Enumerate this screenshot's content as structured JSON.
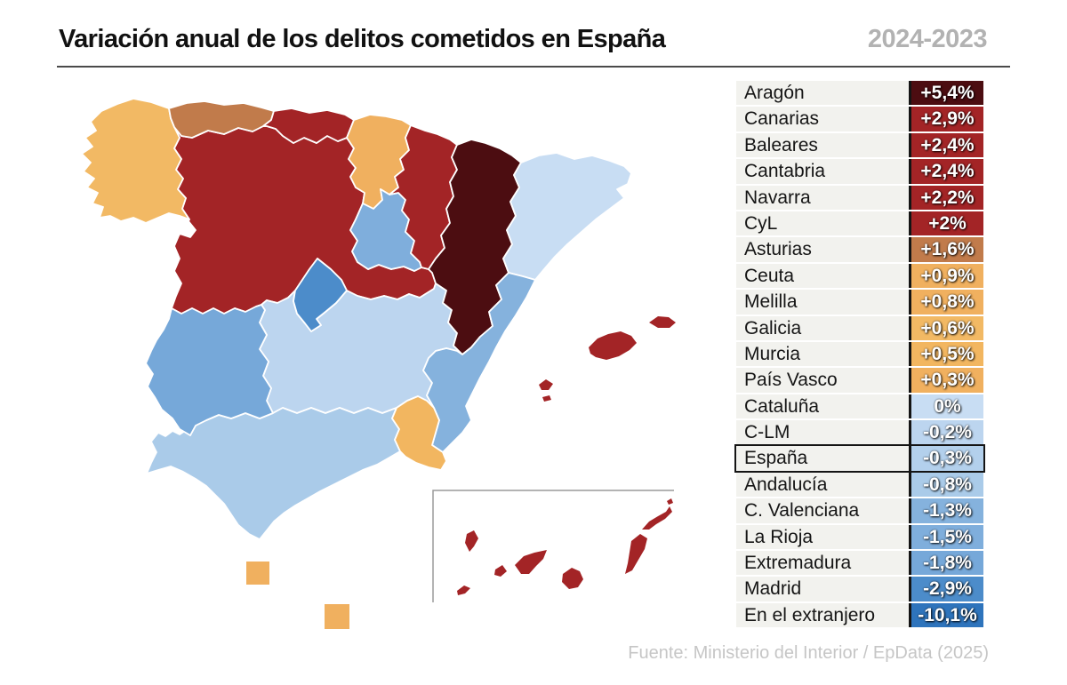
{
  "header": {
    "title": "Variación anual de los delitos cometidos en España",
    "period": "2024-2023"
  },
  "footer": {
    "source": "Fuente: Ministerio del Interior / EpData (2025)"
  },
  "palette": {
    "darkest_increase": "#4C0D11",
    "strong_increase": "#A32426",
    "moderate_increase": "#C17B4B",
    "slight_increase": "#F0B05F",
    "neutral": "#C8DDF3",
    "slight_decrease": "#B3D0EC",
    "moderate_decrease": "#85B2DD",
    "strong_decrease": "#4C8CCA",
    "darkest_decrease": "#2E74BC",
    "row_label_bg": "#f2f2ee",
    "inset_box_stroke": "#9a9a9a"
  },
  "chart_data": {
    "type": "table",
    "subtype": "choropleth-map-of-spain",
    "title": "Variación anual de los delitos cometidos en España",
    "period_label": "2024-2023",
    "unit": "%",
    "source": "Fuente: Ministerio del Interior / EpData (2025)",
    "legend_position": "right",
    "highlighted_row": "España",
    "regions": [
      {
        "id": "aragon",
        "label": "Aragón",
        "value": 5.4,
        "value_label": "+5,4%",
        "color": "#4C0D11",
        "boxed": false,
        "on_map": true
      },
      {
        "id": "canarias",
        "label": "Canarias",
        "value": 2.9,
        "value_label": "+2,9%",
        "color": "#A32426",
        "boxed": false,
        "on_map": true
      },
      {
        "id": "baleares",
        "label": "Baleares",
        "value": 2.4,
        "value_label": "+2,4%",
        "color": "#A32426",
        "boxed": false,
        "on_map": true
      },
      {
        "id": "cantabria",
        "label": "Cantabria",
        "value": 2.4,
        "value_label": "+2,4%",
        "color": "#A32426",
        "boxed": false,
        "on_map": true
      },
      {
        "id": "navarra",
        "label": "Navarra",
        "value": 2.2,
        "value_label": "+2,2%",
        "color": "#A32426",
        "boxed": false,
        "on_map": true
      },
      {
        "id": "cyl",
        "label": "CyL",
        "value": 2.0,
        "value_label": "+2%",
        "color": "#A32426",
        "boxed": false,
        "on_map": true
      },
      {
        "id": "asturias",
        "label": "Asturias",
        "value": 1.6,
        "value_label": "+1,6%",
        "color": "#C17B4B",
        "boxed": false,
        "on_map": true
      },
      {
        "id": "ceuta",
        "label": "Ceuta",
        "value": 0.9,
        "value_label": "+0,9%",
        "color": "#F0B05F",
        "boxed": false,
        "on_map": true
      },
      {
        "id": "melilla",
        "label": "Melilla",
        "value": 0.8,
        "value_label": "+0,8%",
        "color": "#F0B05F",
        "boxed": false,
        "on_map": true
      },
      {
        "id": "galicia",
        "label": "Galicia",
        "value": 0.6,
        "value_label": "+0,6%",
        "color": "#F2B964",
        "boxed": false,
        "on_map": true
      },
      {
        "id": "murcia",
        "label": "Murcia",
        "value": 0.5,
        "value_label": "+0,5%",
        "color": "#F2B660",
        "boxed": false,
        "on_map": true
      },
      {
        "id": "pais-vasco",
        "label": "País Vasco",
        "value": 0.3,
        "value_label": "+0,3%",
        "color": "#F0B05F",
        "boxed": false,
        "on_map": true
      },
      {
        "id": "cataluna",
        "label": "Cataluña",
        "value": 0.0,
        "value_label": "0%",
        "color": "#C8DDF3",
        "boxed": false,
        "on_map": true
      },
      {
        "id": "clm",
        "label": "C-LM",
        "value": -0.2,
        "value_label": "-0,2%",
        "color": "#BCD5EF",
        "boxed": false,
        "on_map": true
      },
      {
        "id": "espana",
        "label": "España",
        "value": -0.3,
        "value_label": "-0,3%",
        "color": "#B3D0EC",
        "boxed": true,
        "on_map": false
      },
      {
        "id": "andalucia",
        "label": "Andalucía",
        "value": -0.8,
        "value_label": "-0,8%",
        "color": "#AACBE9",
        "boxed": false,
        "on_map": true
      },
      {
        "id": "valenciana",
        "label": "C. Valenciana",
        "value": -1.3,
        "value_label": "-1,3%",
        "color": "#85B2DD",
        "boxed": false,
        "on_map": true
      },
      {
        "id": "la-rioja",
        "label": "La Rioja",
        "value": -1.5,
        "value_label": "-1,5%",
        "color": "#7FAEDC",
        "boxed": false,
        "on_map": true
      },
      {
        "id": "extremadura",
        "label": "Extremadura",
        "value": -1.8,
        "value_label": "-1,8%",
        "color": "#76A8D9",
        "boxed": false,
        "on_map": true
      },
      {
        "id": "madrid",
        "label": "Madrid",
        "value": -2.9,
        "value_label": "-2,9%",
        "color": "#4C8CCA",
        "boxed": false,
        "on_map": true
      },
      {
        "id": "extranjero",
        "label": "En el extranjero",
        "value": -10.1,
        "value_label": "-10,1%",
        "color": "#2E74BC",
        "boxed": false,
        "on_map": false
      }
    ]
  }
}
